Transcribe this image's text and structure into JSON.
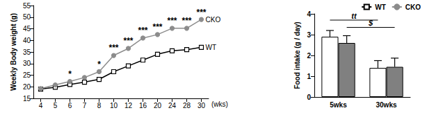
{
  "chart_data": [
    {
      "type": "line",
      "x_label": "(wks)",
      "y_label": "Weekly Body weight (g)",
      "categories": [
        "4",
        "5",
        "6",
        "7",
        "8",
        "10",
        "12",
        "16",
        "20",
        "24",
        "28",
        "30"
      ],
      "series": [
        {
          "name": "WT",
          "color": "#000000",
          "marker": "square-open",
          "values": [
            19,
            19.8,
            21,
            22,
            23.2,
            26.5,
            29,
            31.5,
            34,
            35.5,
            36,
            37
          ]
        },
        {
          "name": "CKO",
          "color": "#8c8c8c",
          "marker": "circle",
          "values": [
            19.2,
            20.8,
            22.3,
            24,
            26.5,
            33.5,
            36.5,
            41,
            42.5,
            45.2,
            45.2,
            49
          ],
          "significance": [
            null,
            null,
            "*",
            null,
            "*",
            "***",
            "***",
            "***",
            "***",
            "***",
            "***",
            "***"
          ]
        }
      ],
      "ylim": [
        15,
        55
      ],
      "yticks": [
        15,
        20,
        25,
        30,
        35,
        40,
        45,
        50,
        55
      ],
      "grid": false
    },
    {
      "type": "bar",
      "y_label": "Food intake (g / day)",
      "categories": [
        "5wks",
        "30wks"
      ],
      "series": [
        {
          "name": "WT",
          "color": "#ffffff",
          "values": [
            2.9,
            1.4
          ],
          "errors": [
            0.3,
            0.35
          ]
        },
        {
          "name": "CKO",
          "color": "#808080",
          "values": [
            2.6,
            1.45
          ],
          "errors": [
            0.35,
            0.42
          ]
        }
      ],
      "brackets": [
        {
          "text": "tt",
          "series": "WT"
        },
        {
          "text": "$",
          "series": "CKO"
        }
      ],
      "ylim": [
        0,
        4
      ],
      "yticks": [
        0,
        1,
        2,
        3,
        4
      ],
      "legend": "upper right",
      "grid": false
    }
  ]
}
